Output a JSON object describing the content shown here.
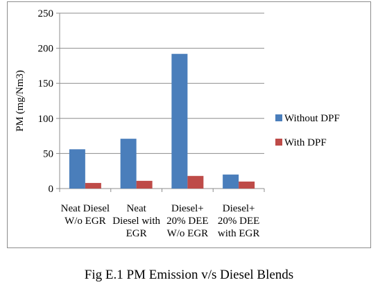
{
  "caption": "Fig E.1 PM Emission v/s Diesel Blends",
  "colors": {
    "without_dpf": "#4a7ebb",
    "with_dpf": "#be4b48",
    "axis": "#8c8c8c",
    "grid": "#8c8c8c"
  },
  "chart_data": {
    "type": "bar",
    "title": "",
    "ylabel": "PM (mg/Nm3)",
    "xlabel": "",
    "ylim": [
      0,
      250
    ],
    "yticks": [
      0,
      50,
      100,
      150,
      200,
      250
    ],
    "grid": true,
    "legend_position": "right",
    "categories": [
      [
        "Neat Diesel",
        "W/o EGR"
      ],
      [
        "Neat",
        "Diesel with",
        "EGR"
      ],
      [
        "Diesel+",
        "20% DEE",
        "W/o EGR"
      ],
      [
        "Diesel+",
        "20% DEE",
        "with EGR"
      ]
    ],
    "series": [
      {
        "name": "Without DPF",
        "values": [
          56,
          71,
          192,
          20
        ]
      },
      {
        "name": "With DPF",
        "values": [
          8,
          11,
          18,
          10
        ]
      }
    ]
  }
}
